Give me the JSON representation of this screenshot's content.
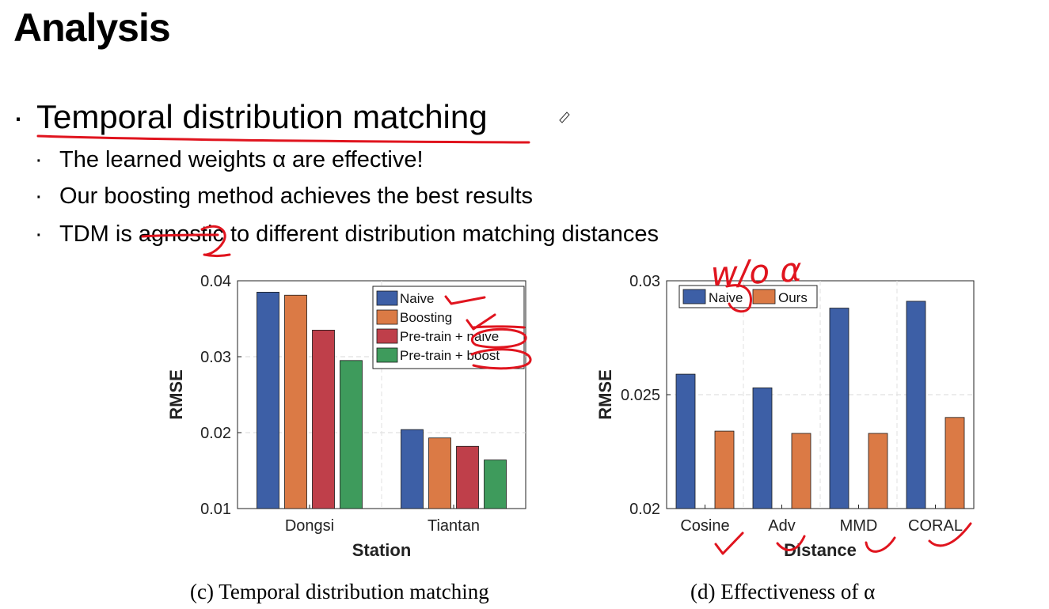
{
  "slide": {
    "title": "Analysis",
    "bullet": "Temporal distribution matching",
    "subbullets": [
      "The learned weights α are effective!",
      "Our boosting method achieves the best results",
      "TDM is agnostic to different distribution matching distances"
    ],
    "bullet_char": "·"
  },
  "annotation": {
    "handwritten_text": "w/o α"
  },
  "captions": {
    "c": "(c)  Temporal distribution matching",
    "d": "(d)  Effectiveness of α"
  },
  "chart_data": [
    {
      "type": "bar",
      "categories": [
        "Dongsi",
        "Tiantan"
      ],
      "series": [
        {
          "name": "Naive",
          "color": "#3d5fa6",
          "values": [
            0.0385,
            0.0204
          ]
        },
        {
          "name": "Boosting",
          "color": "#db7a45",
          "values": [
            0.0381,
            0.0193
          ]
        },
        {
          "name": "Pre-train + naive",
          "color": "#bf3f4a",
          "values": [
            0.0335,
            0.0182
          ]
        },
        {
          "name": "Pre-train + boost",
          "color": "#3e9b5c",
          "values": [
            0.0295,
            0.0164
          ]
        }
      ],
      "xlabel": "Station",
      "ylabel": "RMSE",
      "ylim": [
        0.01,
        0.04
      ],
      "yticks": [
        "0.01",
        "0.02",
        "0.03",
        "0.04"
      ],
      "legend": "top-right",
      "grid": true
    },
    {
      "type": "bar",
      "categories": [
        "Cosine",
        "Adv",
        "MMD",
        "CORAL"
      ],
      "series": [
        {
          "name": "Naive",
          "color": "#3d5fa6",
          "values": [
            0.0259,
            0.0253,
            0.0288,
            0.0291
          ]
        },
        {
          "name": "Ours",
          "color": "#db7a45",
          "values": [
            0.0234,
            0.0233,
            0.0233,
            0.024
          ]
        }
      ],
      "xlabel": "Distance",
      "ylabel": "RMSE",
      "ylim": [
        0.02,
        0.03
      ],
      "yticks": [
        "0.02",
        "0.025",
        "0.03"
      ],
      "legend": "top-left",
      "grid": true
    }
  ]
}
